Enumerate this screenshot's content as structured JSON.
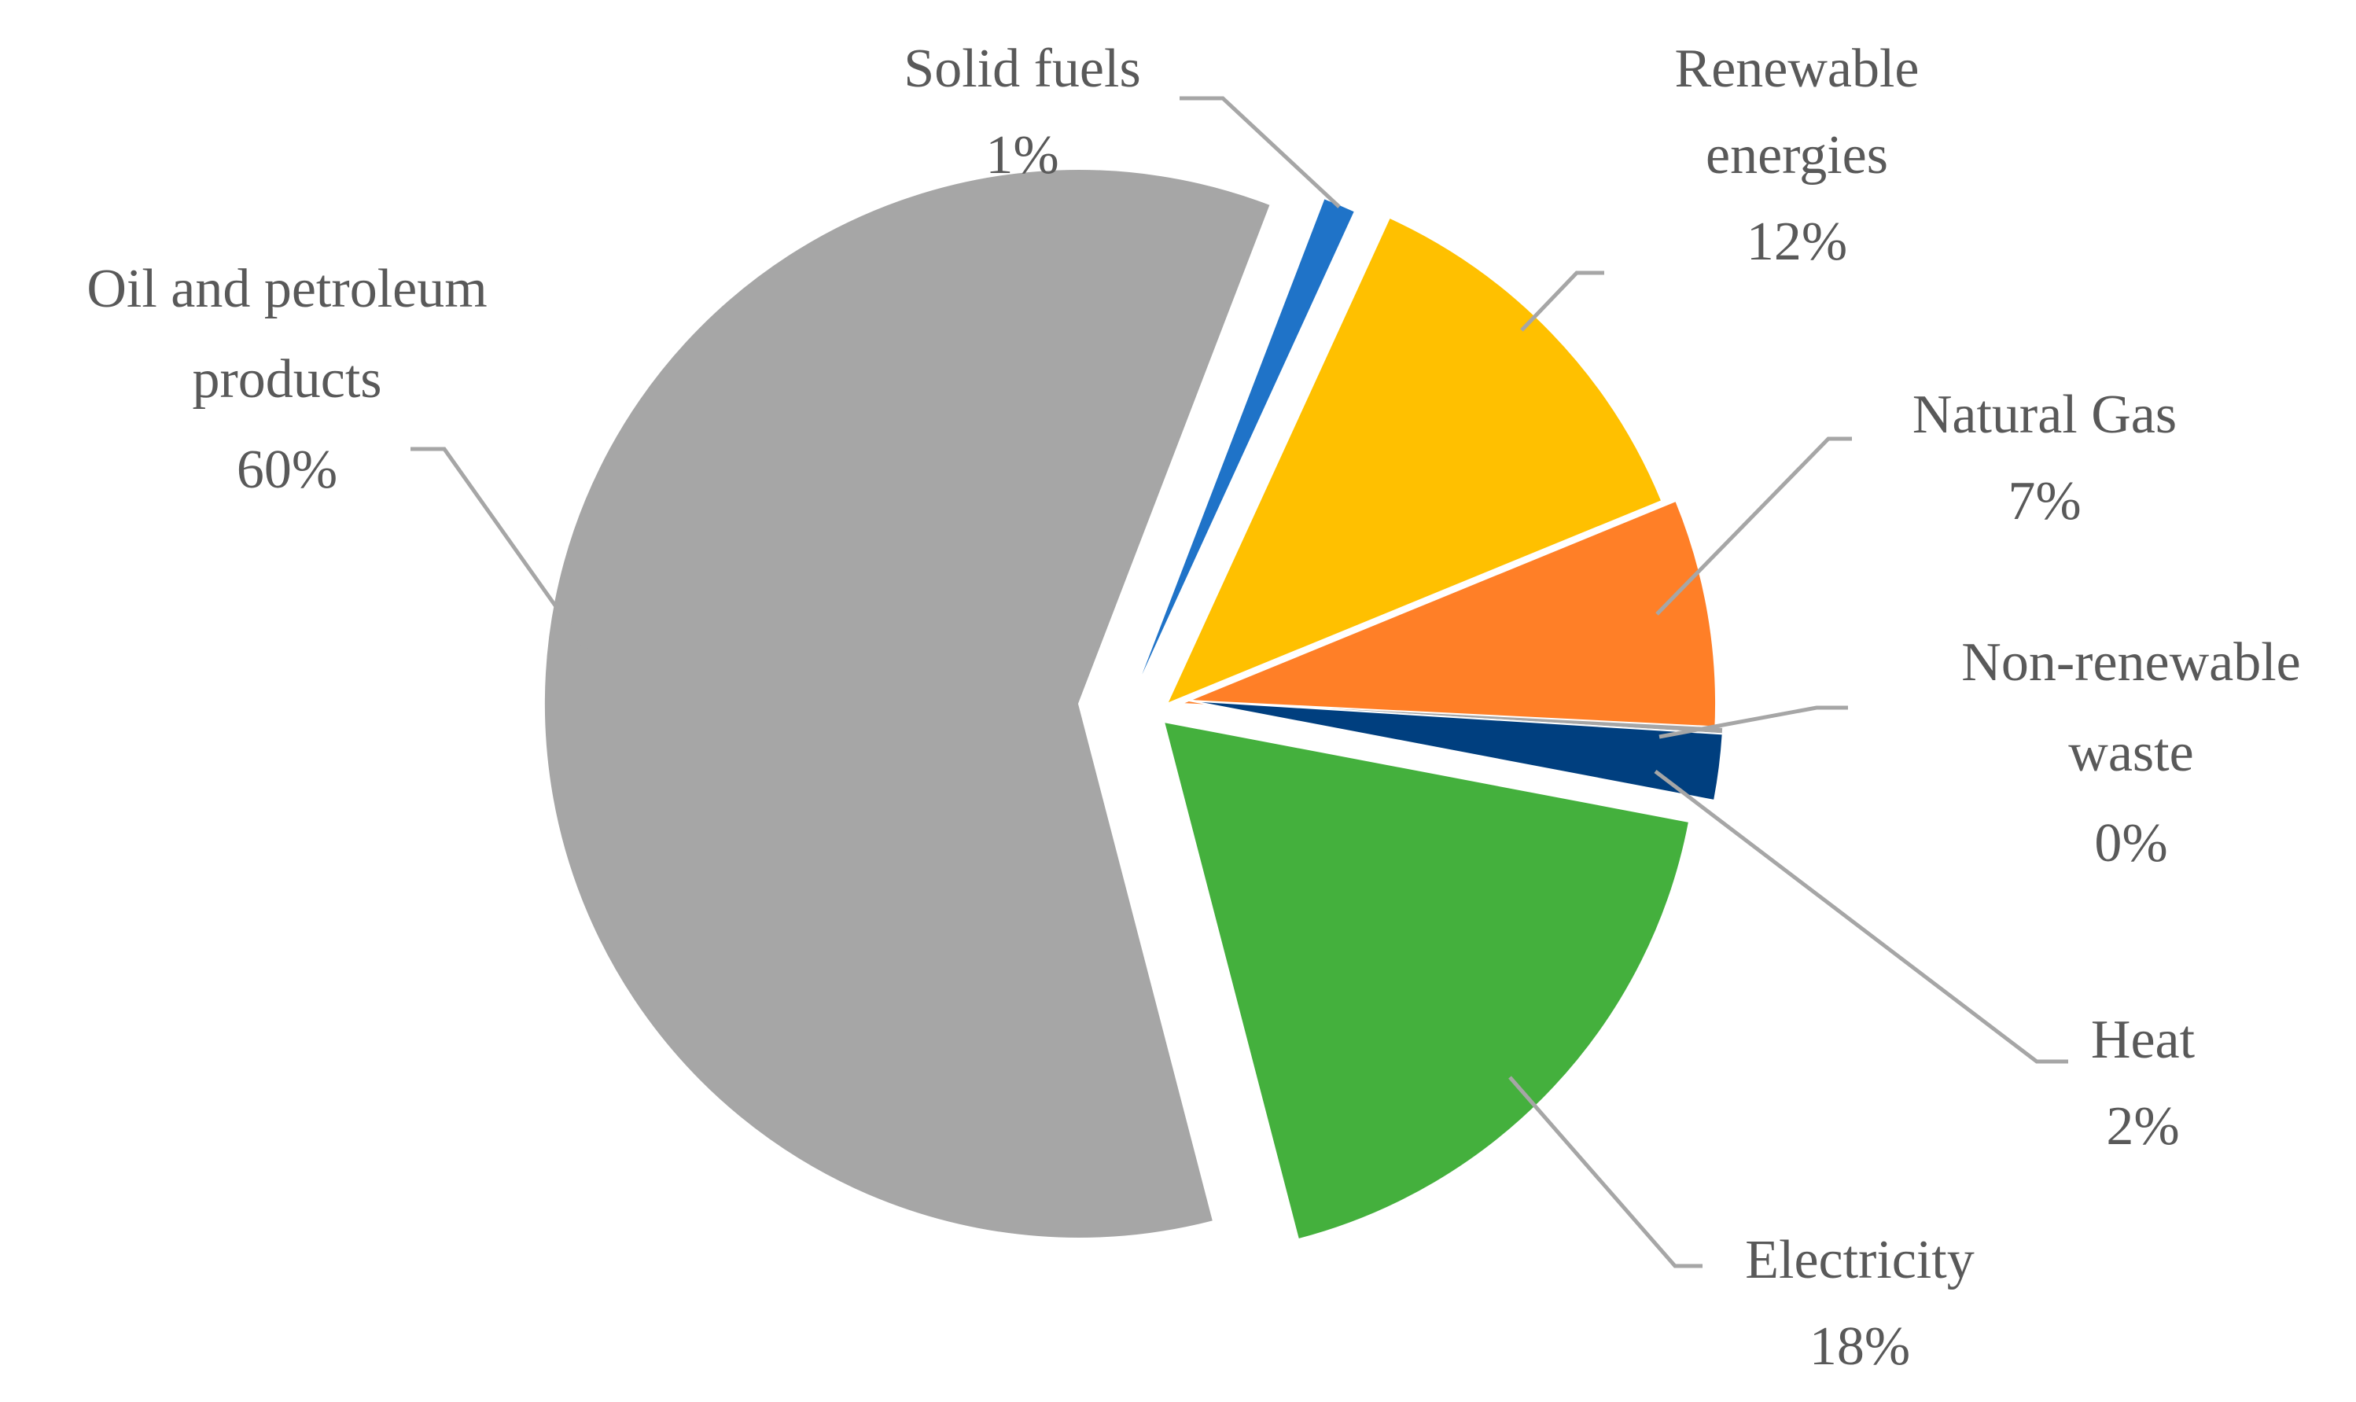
{
  "chart_data": {
    "type": "pie",
    "exploded": true,
    "start_angle_deg": 21,
    "series": [
      {
        "values": [
          1,
          12,
          7,
          0.2,
          2,
          18,
          60
        ],
        "percent_labels": [
          "1%",
          "12%",
          "7%",
          "0%",
          "2%",
          "18%",
          "60%"
        ]
      }
    ],
    "categories": [
      "Solid fuels",
      "Renewable energies",
      "Natural Gas",
      "Non-renewable waste",
      "Heat",
      "Electricity",
      "Oil and petroleum products"
    ],
    "colors": [
      "#1f73c8",
      "#ffc000",
      "#ff7f27",
      "#a6a6a6",
      "#003f7f",
      "#44b03d",
      "#a6a6a6"
    ],
    "labels": [
      {
        "lines": [
          "Solid fuels",
          "1%"
        ]
      },
      {
        "lines": [
          "Renewable",
          "energies",
          "12%"
        ]
      },
      {
        "lines": [
          "Natural Gas",
          "7%"
        ]
      },
      {
        "lines": [
          "Non-renewable",
          "waste",
          "0%"
        ]
      },
      {
        "lines": [
          "Heat",
          "2%"
        ]
      },
      {
        "lines": [
          "Electricity",
          "18%"
        ]
      },
      {
        "lines": [
          "Oil and petroleum",
          "products",
          "60%"
        ]
      }
    ]
  }
}
